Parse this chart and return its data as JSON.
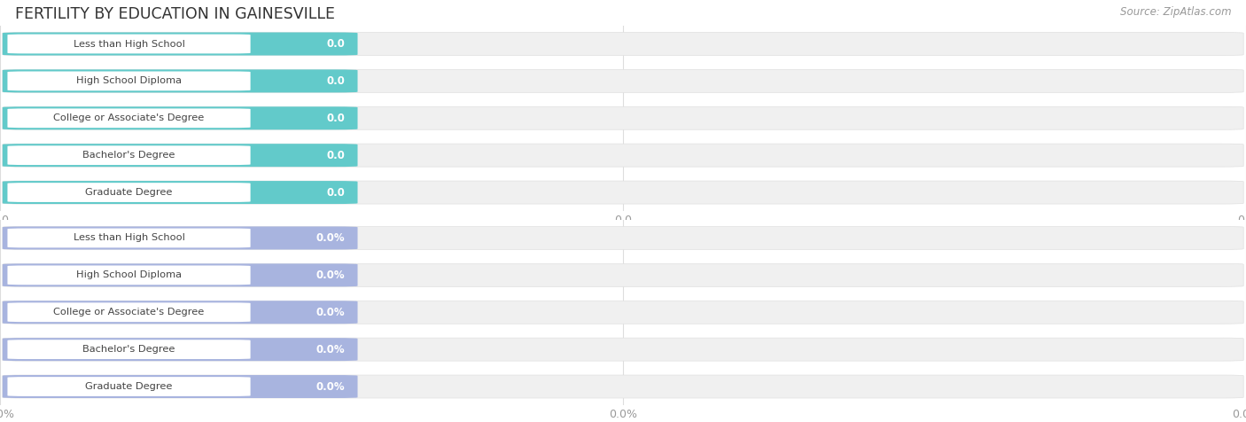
{
  "title": "FERTILITY BY EDUCATION IN GAINESVILLE",
  "source": "Source: ZipAtlas.com",
  "categories": [
    "Less than High School",
    "High School Diploma",
    "College or Associate's Degree",
    "Bachelor's Degree",
    "Graduate Degree"
  ],
  "values_top": [
    0.0,
    0.0,
    0.0,
    0.0,
    0.0
  ],
  "values_bottom": [
    0.0,
    0.0,
    0.0,
    0.0,
    0.0
  ],
  "bar_color_top": "#62caca",
  "bar_color_bottom": "#a8b4df",
  "label_bg_color": "#ffffff",
  "bar_bg_color": "#f0f0f0",
  "row_bg_color": "#f5f5f5",
  "label_color": "#444444",
  "value_color": "#ffffff",
  "tick_label_color": "#999999",
  "title_color": "#333333",
  "source_color": "#999999",
  "background_color": "#ffffff",
  "grid_color": "#dddddd",
  "figwidth": 14.06,
  "figheight": 4.76
}
